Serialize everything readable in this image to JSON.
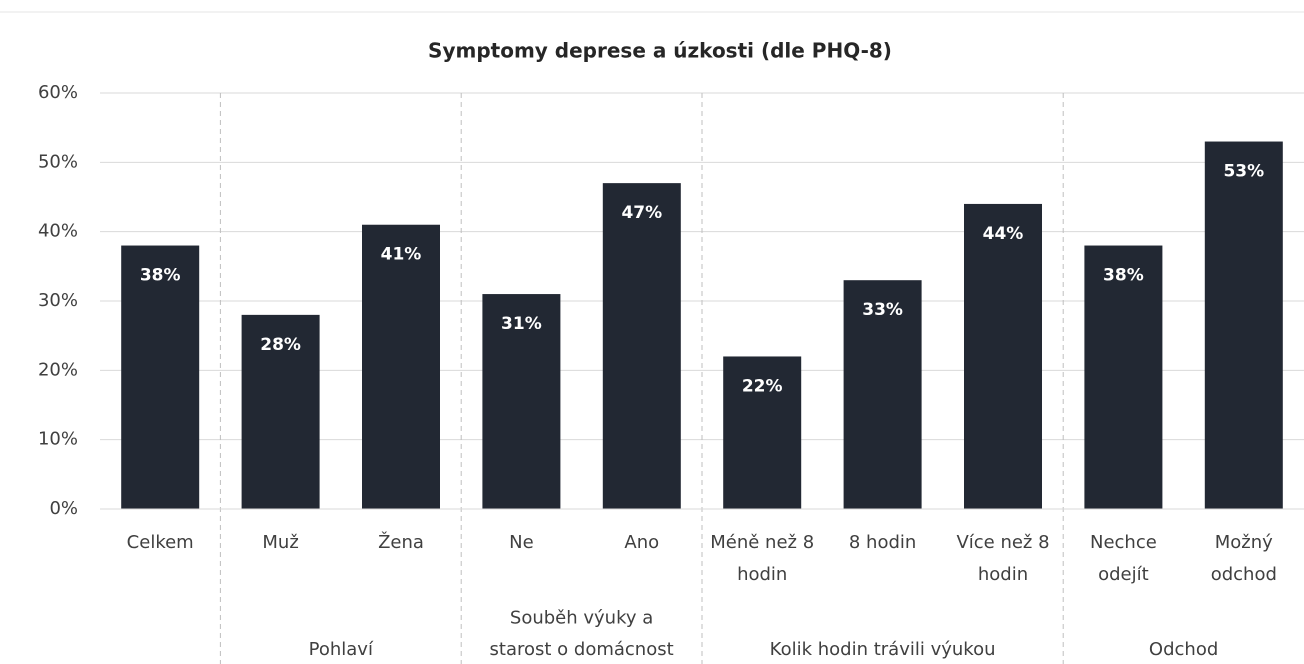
{
  "chart_data": {
    "type": "bar",
    "title": "Symptomy deprese a úzkosti (dle PHQ-8)",
    "categories": [
      "Celkem",
      "Muž",
      "Žena",
      "Ne",
      "Ano",
      "Méně než 8 hodin",
      "8 hodin",
      "Více než 8 hodin",
      "Nechce odejít",
      "Možný odchod"
    ],
    "values": [
      38,
      28,
      41,
      31,
      47,
      22,
      33,
      44,
      38,
      53
    ],
    "value_labels": [
      "38%",
      "28%",
      "41%",
      "31%",
      "47%",
      "22%",
      "33%",
      "44%",
      "38%",
      "53%"
    ],
    "groups": [
      {
        "name": "Pohlaví",
        "span": [
          1,
          2
        ]
      },
      {
        "name": "Souběh výuky a starost o domácnost",
        "span": [
          3,
          4
        ]
      },
      {
        "name": "Kolik hodin trávili výukou",
        "span": [
          5,
          7
        ]
      },
      {
        "name": "Odchod",
        "span": [
          8,
          9
        ]
      }
    ],
    "color": "#222833",
    "ylim": [
      0,
      60
    ],
    "yticks": [
      {
        "value": 0,
        "label": "0%"
      },
      {
        "value": 10,
        "label": "10%"
      },
      {
        "value": 20,
        "label": "20%"
      },
      {
        "value": 30,
        "label": "30%"
      },
      {
        "value": 40,
        "label": "40%"
      },
      {
        "value": 50,
        "label": "50%"
      },
      {
        "value": 60,
        "label": "60%"
      }
    ],
    "grid": true
  }
}
